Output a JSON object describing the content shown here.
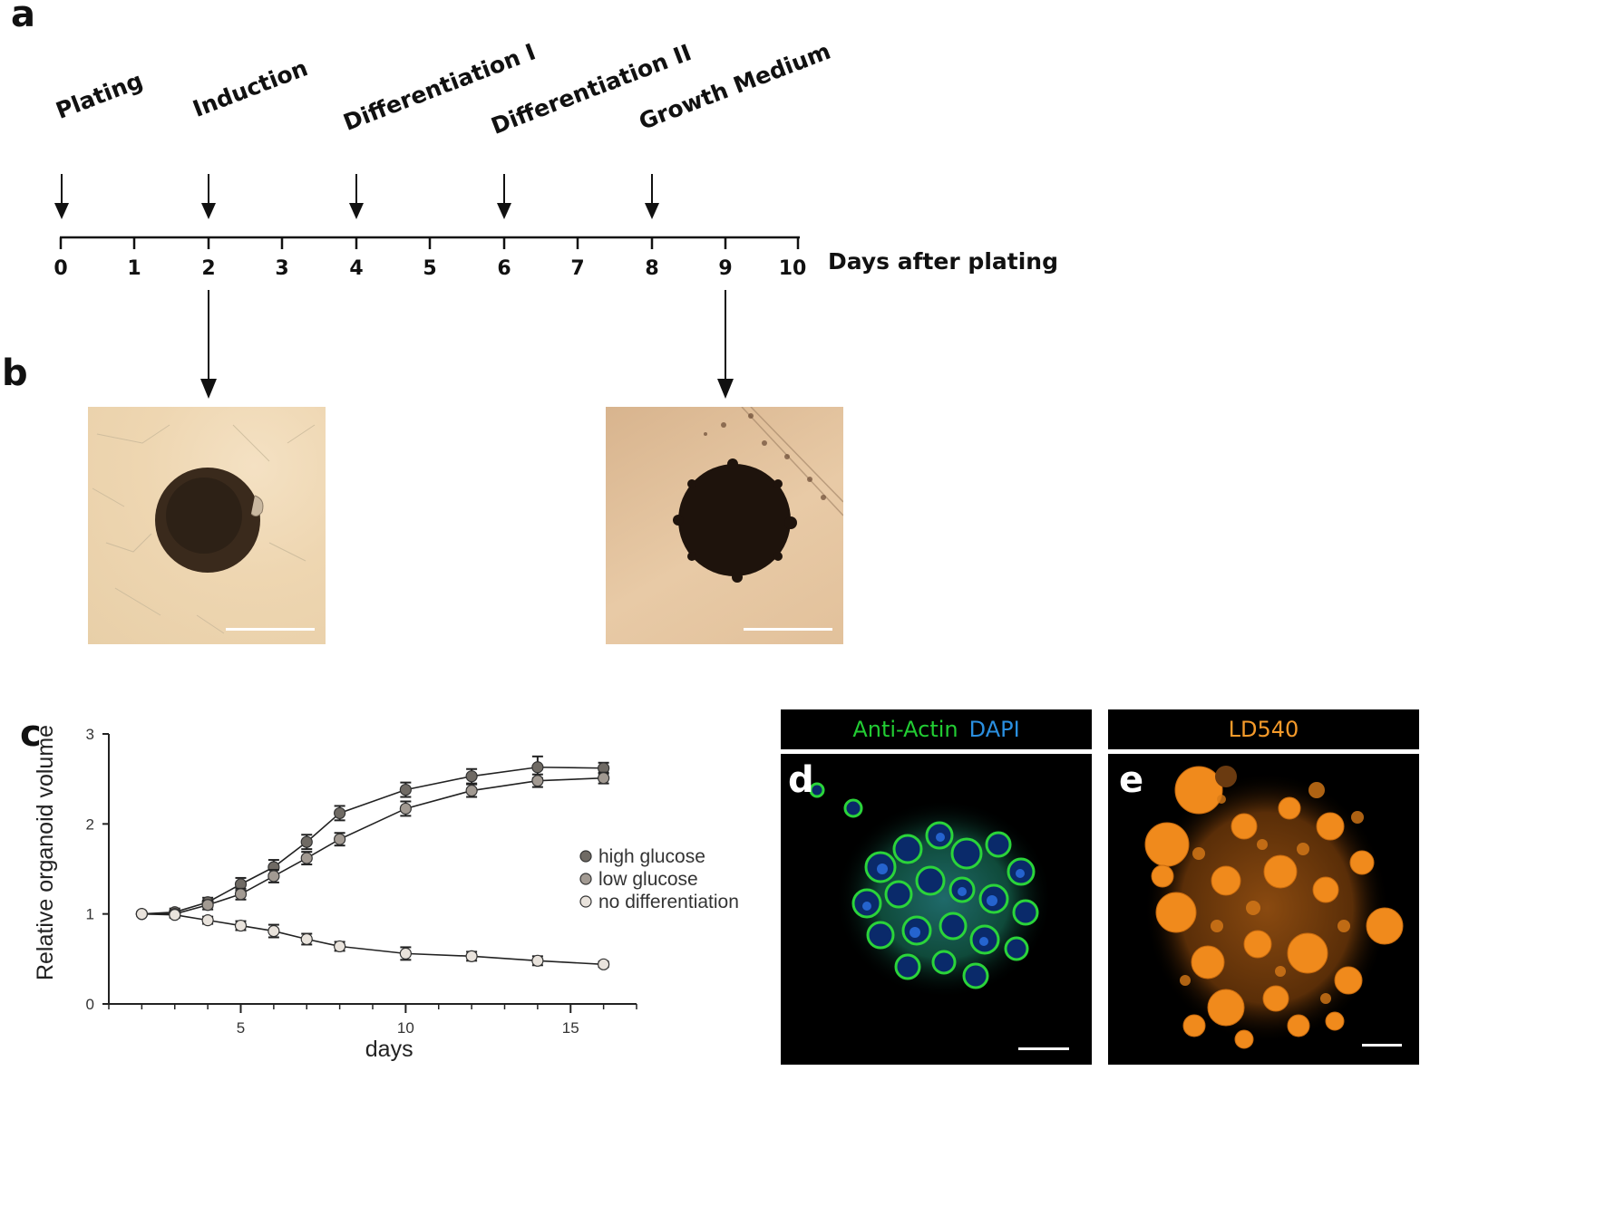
{
  "panels": {
    "a": "a",
    "b": "b",
    "c": "c",
    "d": "d",
    "e": "e"
  },
  "timeline": {
    "stages": [
      {
        "label": "Plating",
        "day": 0
      },
      {
        "label": "Induction",
        "day": 2
      },
      {
        "label": "Differentiation I",
        "day": 4
      },
      {
        "label": "Differentiation II",
        "day": 6
      },
      {
        "label": "Growth Medium",
        "day": 8
      }
    ],
    "ticks": [
      "0",
      "1",
      "2",
      "3",
      "4",
      "5",
      "6",
      "7",
      "8",
      "9",
      "10"
    ],
    "axis_label": "Days after plating",
    "image_days": [
      2,
      9
    ]
  },
  "fluorescence": {
    "d": {
      "stain1": "Anti-Actin",
      "stain1_color": "#22cc33",
      "stain2": "DAPI",
      "stain2_color": "#2a8fe0"
    },
    "e": {
      "stain1": "LD540",
      "stain1_color": "#f59a2a"
    }
  },
  "chart_data": {
    "type": "line",
    "xlabel": "days",
    "ylabel": "Relative organoid volume",
    "xlim": [
      1,
      17
    ],
    "ylim": [
      0,
      3
    ],
    "xticks": [
      "5",
      "10",
      "15"
    ],
    "yticks": [
      "0",
      "1",
      "2",
      "3"
    ],
    "legend_position": "right",
    "series": [
      {
        "name": "high glucose",
        "color": "#6f6a64",
        "x": [
          2,
          3,
          4,
          5,
          6,
          7,
          8,
          10,
          12,
          14,
          16
        ],
        "y": [
          1.0,
          1.02,
          1.13,
          1.33,
          1.52,
          1.8,
          2.12,
          2.38,
          2.53,
          2.63,
          2.62
        ],
        "err": [
          0.02,
          0.04,
          0.05,
          0.07,
          0.08,
          0.08,
          0.08,
          0.08,
          0.08,
          0.12,
          0.06
        ]
      },
      {
        "name": "low glucose",
        "color": "#a29a92",
        "x": [
          2,
          3,
          4,
          5,
          6,
          7,
          8,
          10,
          12,
          14,
          16
        ],
        "y": [
          1.0,
          1.0,
          1.1,
          1.22,
          1.42,
          1.62,
          1.83,
          2.17,
          2.37,
          2.48,
          2.51
        ],
        "err": [
          0.02,
          0.04,
          0.05,
          0.06,
          0.07,
          0.07,
          0.07,
          0.08,
          0.07,
          0.07,
          0.06
        ]
      },
      {
        "name": "no differentiation",
        "color": "#e9e3dc",
        "x": [
          2,
          3,
          4,
          5,
          6,
          7,
          8,
          10,
          12,
          14,
          16
        ],
        "y": [
          1.0,
          0.99,
          0.93,
          0.87,
          0.81,
          0.72,
          0.64,
          0.56,
          0.53,
          0.48,
          0.44
        ],
        "err": [
          0.02,
          0.03,
          0.04,
          0.05,
          0.07,
          0.06,
          0.05,
          0.07,
          0.05,
          0.05,
          0.03
        ]
      }
    ]
  }
}
